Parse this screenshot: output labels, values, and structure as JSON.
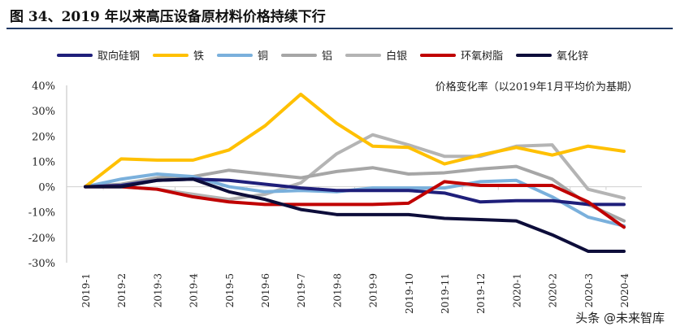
{
  "title": "图 34、2019 年以来高压设备原材料价格持续下行",
  "watermark": "头条 @未来智库",
  "chart_data": {
    "type": "line",
    "annotation": "价格变化率（以2019年1月平均价为基期）",
    "categories": [
      "2019-1",
      "2019-2",
      "2019-3",
      "2019-4",
      "2019-5",
      "2019-6",
      "2019-7",
      "2019-8",
      "2019-9",
      "2019-10",
      "2019-11",
      "2019-12",
      "2020-1",
      "2020-2",
      "2020-3",
      "2020-4"
    ],
    "ylim": [
      -30,
      40
    ],
    "yticks": [
      "40%",
      "30%",
      "20%",
      "10%",
      "0%",
      "-10%",
      "-20%",
      "-30%"
    ],
    "grid": false,
    "legend": "top",
    "series": [
      {
        "name": "取向硅钢",
        "color": "#1f1f7a",
        "values": [
          0,
          0.5,
          2.5,
          3,
          2.5,
          1,
          -0.5,
          -1.5,
          -1.5,
          -1.5,
          -2.5,
          -6,
          -5.5,
          -5.5,
          -7,
          -7
        ]
      },
      {
        "name": "铁",
        "color": "#ffc000",
        "values": [
          0,
          11,
          10.5,
          10.5,
          14.5,
          24,
          36.5,
          25,
          16,
          15.5,
          9,
          12.5,
          15.5,
          12.5,
          16,
          14
        ]
      },
      {
        "name": "铜",
        "color": "#7ab0dc",
        "values": [
          0,
          3,
          5,
          4,
          0,
          -2,
          -1.5,
          -2,
          -0.5,
          -0.5,
          -0.5,
          2,
          2.5,
          -4,
          -12,
          -15.5
        ]
      },
      {
        "name": "铝",
        "color": "#a6a6a6",
        "values": [
          0,
          1,
          3.5,
          4,
          6.5,
          5,
          3.5,
          6,
          7.5,
          5,
          5.5,
          7,
          8,
          3,
          -7,
          -13.5
        ]
      },
      {
        "name": "白银",
        "color": "#b4b4b4",
        "values": [
          0,
          0,
          -1,
          -3,
          -5,
          -3,
          1.5,
          13,
          20.5,
          16.5,
          12,
          12,
          16,
          16.5,
          -1,
          -4.5
        ]
      },
      {
        "name": "环氧树脂",
        "color": "#c00000",
        "values": [
          0,
          0,
          -1,
          -4,
          -6,
          -7,
          -7,
          -7,
          -7,
          -6.5,
          2,
          0.5,
          0.5,
          0.5,
          -6,
          -16
        ]
      },
      {
        "name": "氧化锌",
        "color": "#0d0d3a",
        "values": [
          0,
          0,
          2.5,
          3,
          -2,
          -5,
          -9,
          -11,
          -11,
          -11,
          -12.5,
          -13,
          -13.5,
          -19,
          -25.5,
          -25.5
        ]
      }
    ]
  }
}
